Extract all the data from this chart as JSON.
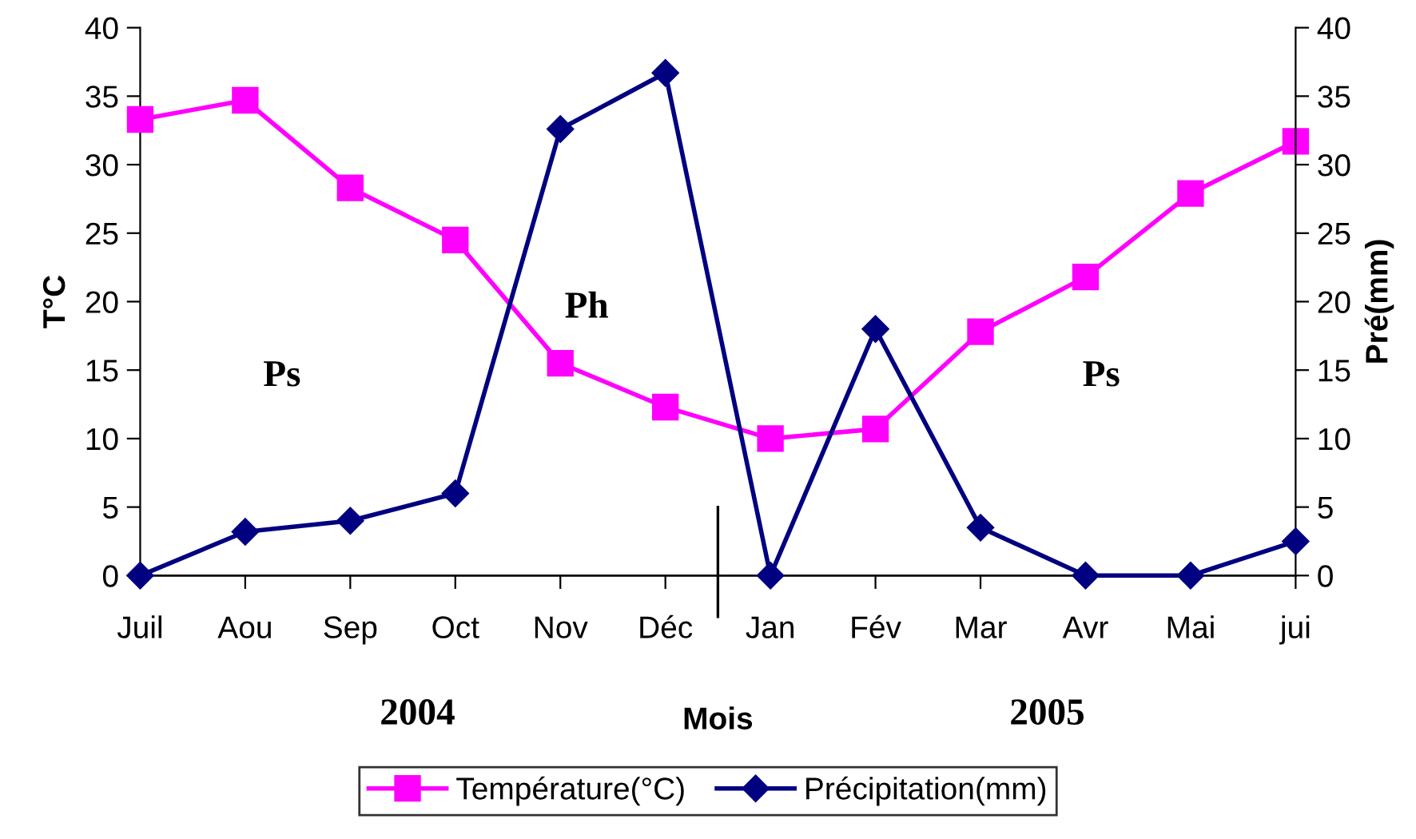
{
  "chart_data": {
    "type": "line",
    "xlabel": "Mois",
    "ylabel": "T°C",
    "y2label": "Pré(mm)",
    "categories": [
      "Juil",
      "Aou",
      "Sep",
      "Oct",
      "Nov",
      "Déc",
      "Jan",
      "Fév",
      "Mar",
      "Avr",
      "Mai",
      "jui"
    ],
    "series": [
      {
        "name": "Température(°C)",
        "color": "#ff00ff",
        "marker": "square",
        "values": [
          33.3,
          34.7,
          28.3,
          24.5,
          15.5,
          12.3,
          10.0,
          10.7,
          17.8,
          21.8,
          27.9,
          31.7
        ]
      },
      {
        "name": "Précipitation(mm)",
        "color": "#000080",
        "marker": "diamond",
        "axis": "y2",
        "values": [
          0,
          3.2,
          4.0,
          6.0,
          32.6,
          36.7,
          0,
          18.0,
          3.5,
          0,
          0,
          2.5
        ]
      }
    ],
    "ylim": [
      0,
      40
    ],
    "yticks": [
      0,
      5,
      10,
      15,
      20,
      25,
      30,
      35,
      40
    ],
    "y2lim": [
      0,
      40
    ],
    "y2ticks": [
      0,
      5,
      10,
      15,
      20,
      25,
      30,
      35,
      40
    ],
    "annotations": [
      "Ps",
      "Ph",
      "Ps",
      "2004",
      "2005"
    ],
    "grid": false,
    "legend": "bottom"
  }
}
